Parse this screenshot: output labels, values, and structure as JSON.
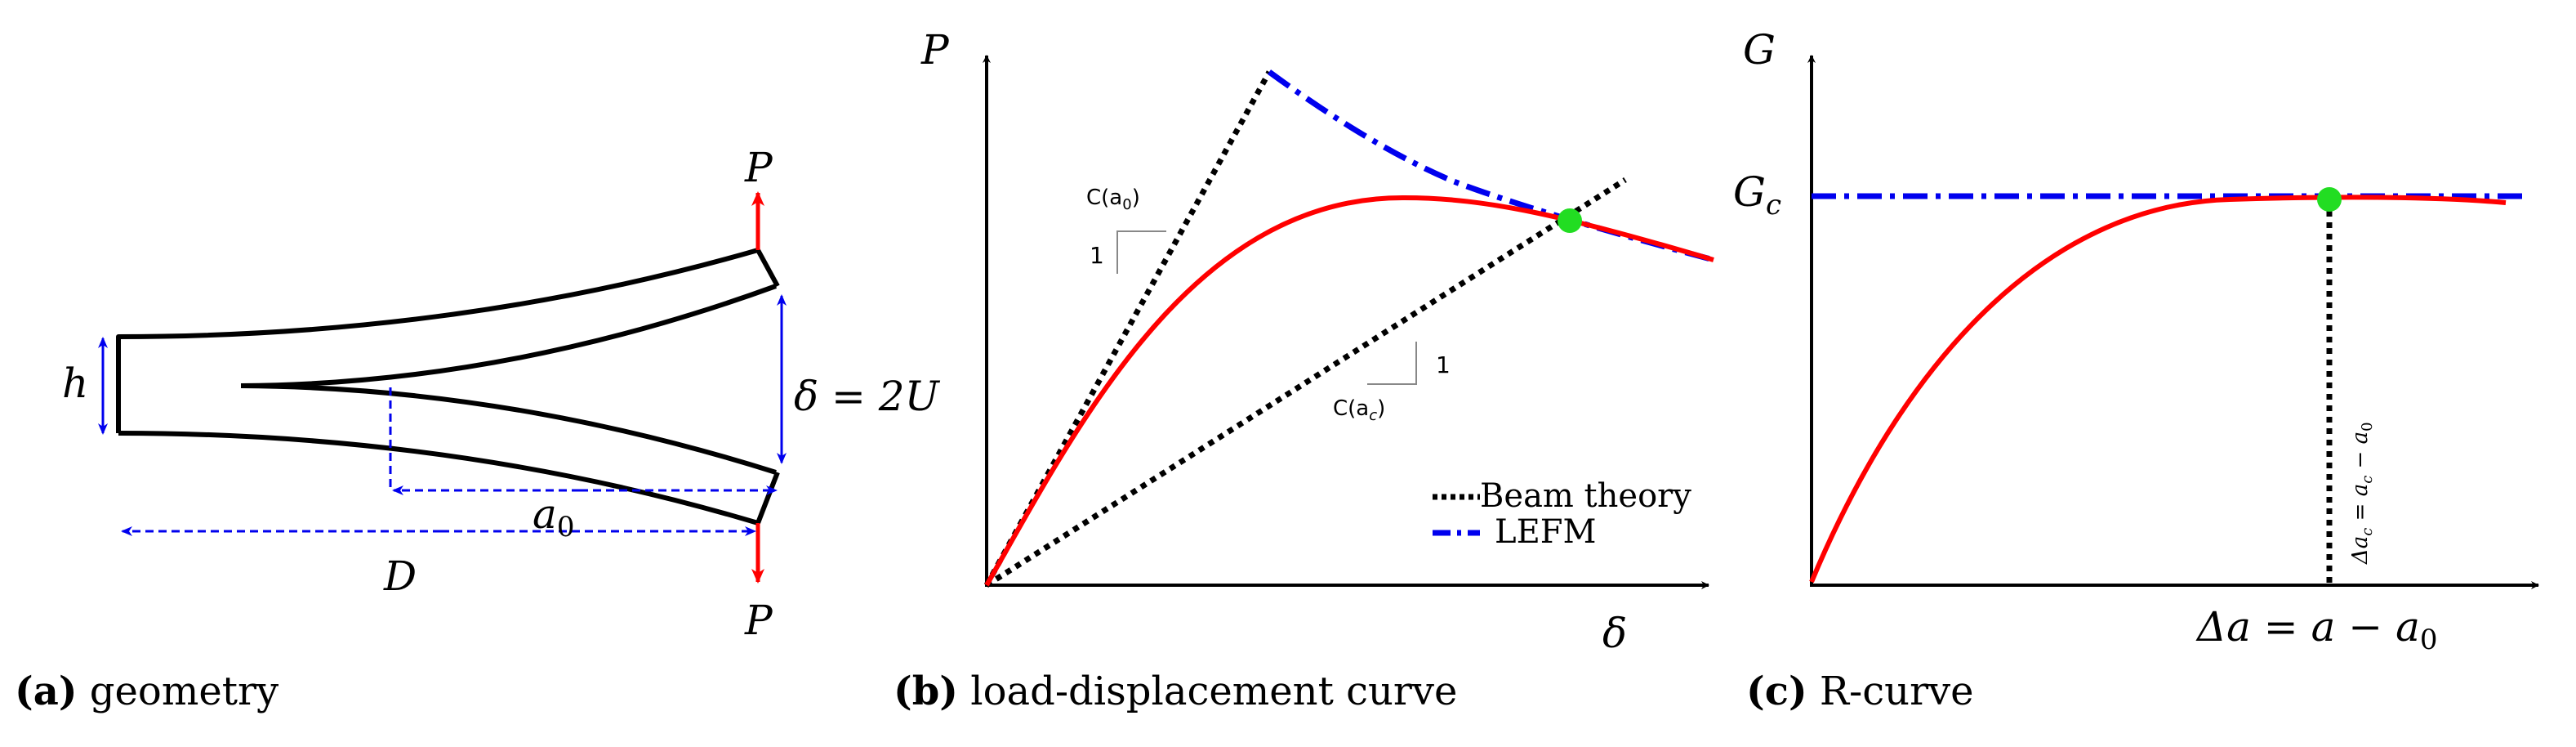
{
  "colors": {
    "curve": "#ff0000",
    "lefm": "#0000ee",
    "beam": "#000000",
    "arrow_load": "#ff0000",
    "arrow_dim": "#0000ee",
    "point": "#22dd22"
  },
  "panel_a": {
    "caption_letter": "(a)",
    "caption_text": " geometry",
    "label_P_top": "P",
    "label_P_bottom": "P",
    "label_h": "h",
    "label_delta": "δ = 2U",
    "label_a0": "a",
    "label_a0_sub": "0",
    "label_D": "D"
  },
  "panel_b": {
    "caption_letter": "(b)",
    "caption_text": " load-displacement curve",
    "ylabel": "P",
    "xlabel": "δ",
    "slope_a0_label": "C(a",
    "slope_a0_sub": "0",
    "slope_a0_close": ")",
    "slope_a0_one": "1",
    "slope_ac_label": "C(a",
    "slope_ac_sub": "c",
    "slope_ac_close": ")",
    "slope_ac_one": "1",
    "legend": [
      {
        "label": "Beam theory",
        "style": "dotted",
        "color": "#000000"
      },
      {
        "label": "LEFM",
        "style": "dashdot",
        "color": "#0000ee"
      }
    ]
  },
  "panel_c": {
    "caption_letter": "(c)",
    "caption_text": " R-curve",
    "ylabel": "G",
    "gc_label": "G",
    "gc_sub": "c",
    "xlabel_main": "Δa = a − a",
    "xlabel_sub": "0",
    "vertical_label": "Δa",
    "vertical_label_sub": "c",
    "vertical_label_rest": " = a",
    "vertical_label_sub2": "c",
    "vertical_label_tail": " − a",
    "vertical_label_sub3": "0"
  }
}
